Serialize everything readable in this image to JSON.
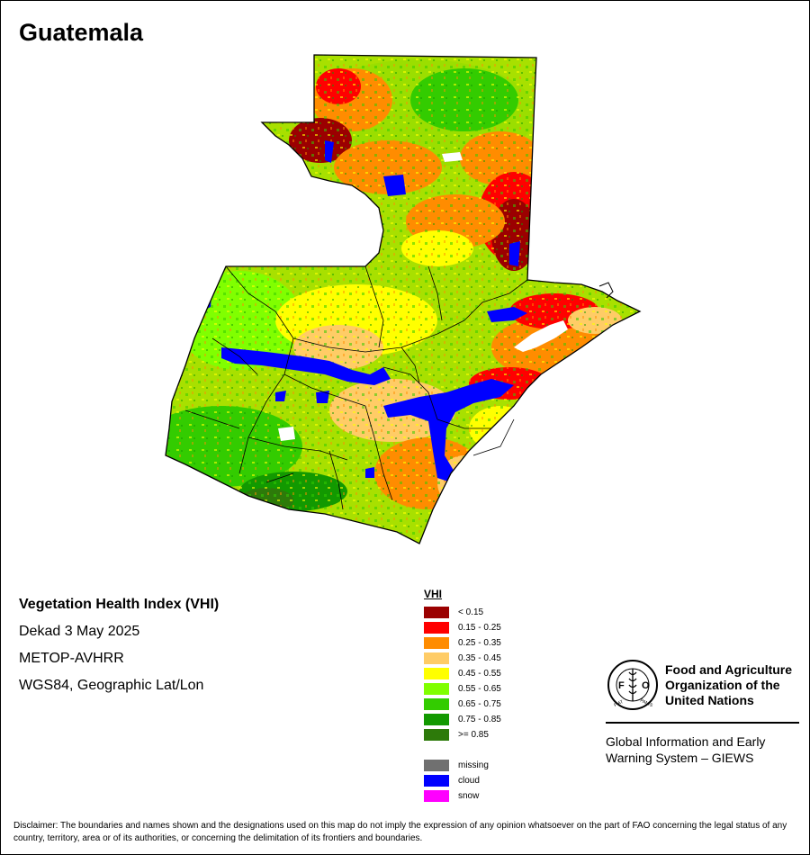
{
  "map": {
    "title": "Guatemala"
  },
  "info": {
    "index_name": "Vegetation Health Index (VHI)",
    "period": "Dekad 3 May 2025",
    "sensor": "METOP-AVHRR",
    "projection": "WGS84, Geographic Lat/Lon"
  },
  "legend": {
    "title": "VHI",
    "classes": [
      {
        "label": "< 0.15",
        "color": "#9b0000"
      },
      {
        "label": "0.15 - 0.25",
        "color": "#ff0000"
      },
      {
        "label": "0.25 - 0.35",
        "color": "#ff8c00"
      },
      {
        "label": "0.35 - 0.45",
        "color": "#ffcc66"
      },
      {
        "label": "0.45 - 0.55",
        "color": "#ffff00"
      },
      {
        "label": "0.55 - 0.65",
        "color": "#80ff00"
      },
      {
        "label": "0.65 - 0.75",
        "color": "#33cc00"
      },
      {
        "label": "0.75 - 0.85",
        "color": "#129900"
      },
      {
        "label": ">= 0.85",
        "color": "#2d7a0a"
      }
    ],
    "special": [
      {
        "label": "missing",
        "color": "#707070"
      },
      {
        "label": "cloud",
        "color": "#0000ff"
      },
      {
        "label": "snow",
        "color": "#ff00ff"
      }
    ]
  },
  "org": {
    "name_line1": "Food and Agriculture",
    "name_line2": "Organization of the",
    "name_line3": "United Nations",
    "system_line1": "Global Information and Early",
    "system_line2": "Warning System – GIEWS",
    "logo_text": "FAO",
    "logo_motto": "FIAT PANIS"
  },
  "disclaimer": "Disclaimer: The boundaries and names shown and the designations used on this map do not imply the expression of any opinion whatsoever on the part of FAO concerning the legal status of any country, territory, area or of its authorities, or concerning the delimitation of its frontiers and boundaries."
}
